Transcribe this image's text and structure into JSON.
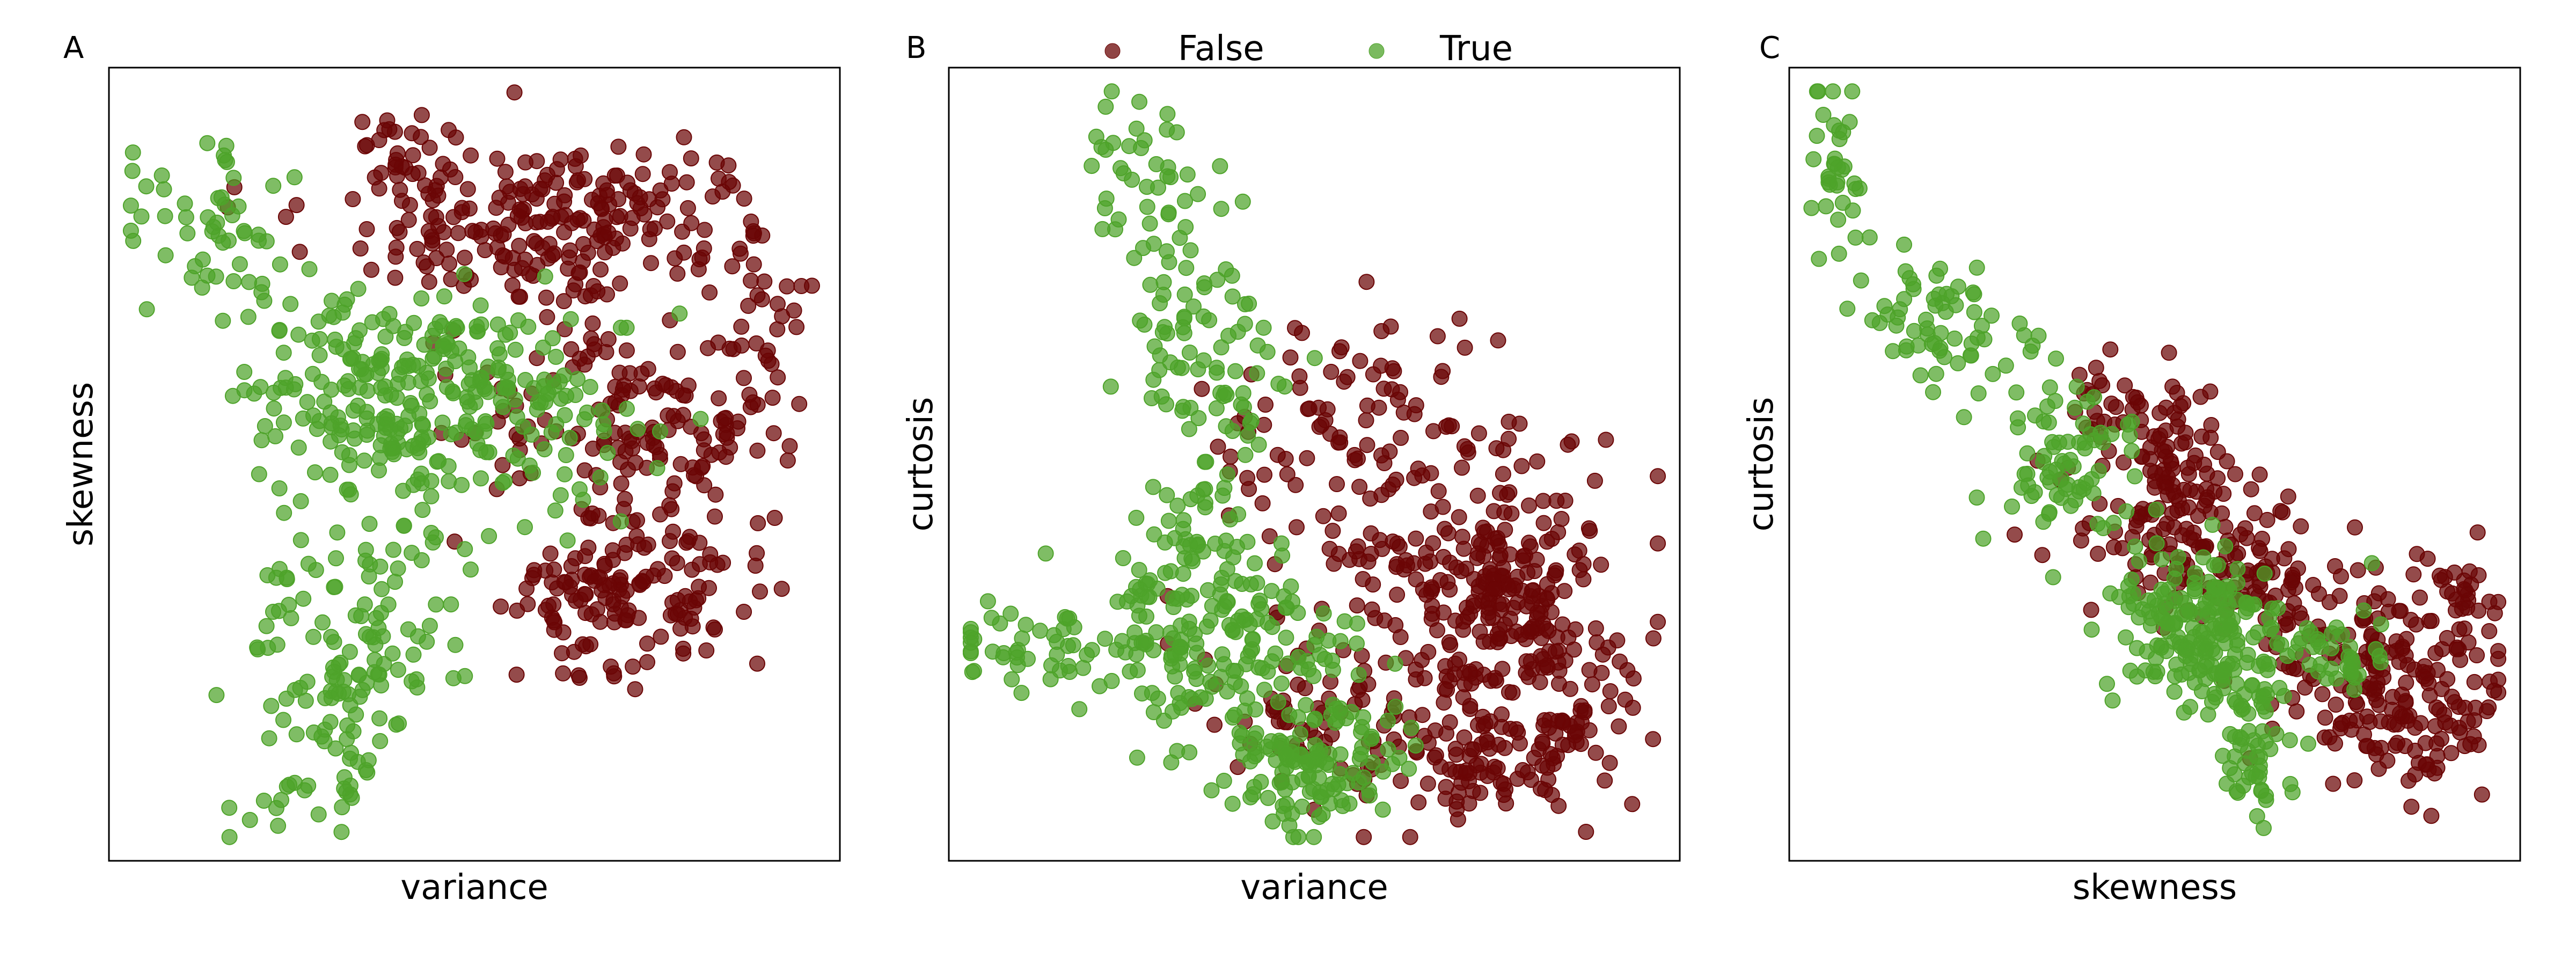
{
  "colors": {
    "False": "#6b0505",
    "True": "#4ea32a"
  },
  "legend": {
    "placement": "top-center",
    "entries": [
      "False",
      "True"
    ]
  },
  "chart_data": [
    {
      "type": "scatter",
      "panel": "A",
      "title": "",
      "xlabel": "variance",
      "ylabel": "skewness",
      "grid": false,
      "ticks": "none",
      "series": [
        {
          "name": "False",
          "clusters": [
            {
              "cx": 0.42,
              "cy": 0.87,
              "sx": 0.04,
              "sy": 0.03,
              "n": 35,
              "rot": -0.3
            },
            {
              "cx": 0.6,
              "cy": 0.81,
              "sx": 0.14,
              "sy": 0.05,
              "n": 210,
              "rot": 0.05
            },
            {
              "cx": 0.73,
              "cy": 0.56,
              "sx": 0.12,
              "sy": 0.08,
              "n": 160,
              "rot": 0.0
            },
            {
              "cx": 0.74,
              "cy": 0.34,
              "sx": 0.08,
              "sy": 0.05,
              "n": 110,
              "rot": 0.3
            },
            {
              "cx": 0.62,
              "cy": 0.33,
              "sx": 0.05,
              "sy": 0.04,
              "n": 40,
              "rot": 0.0
            },
            {
              "cx": 0.88,
              "cy": 0.71,
              "sx": 0.04,
              "sy": 0.06,
              "n": 30,
              "rot": 0.0
            }
          ]
        },
        {
          "name": "True",
          "clusters": [
            {
              "cx": 0.12,
              "cy": 0.82,
              "sx": 0.06,
              "sy": 0.05,
              "n": 45,
              "rot": -0.4
            },
            {
              "cx": 0.46,
              "cy": 0.6,
              "sx": 0.14,
              "sy": 0.06,
              "n": 250,
              "rot": -0.25
            },
            {
              "cx": 0.34,
              "cy": 0.53,
              "sx": 0.07,
              "sy": 0.05,
              "n": 70,
              "rot": 0.0
            },
            {
              "cx": 0.36,
              "cy": 0.31,
              "sx": 0.09,
              "sy": 0.07,
              "n": 95,
              "rot": 0.5
            },
            {
              "cx": 0.33,
              "cy": 0.21,
              "sx": 0.05,
              "sy": 0.04,
              "n": 35,
              "rot": 0.0
            },
            {
              "cx": 0.26,
              "cy": 0.08,
              "sx": 0.05,
              "sy": 0.02,
              "n": 25,
              "rot": 0.3
            }
          ]
        }
      ]
    },
    {
      "type": "scatter",
      "panel": "B",
      "title": "",
      "xlabel": "variance",
      "ylabel": "curtosis",
      "grid": false,
      "ticks": "none",
      "series": [
        {
          "name": "False",
          "clusters": [
            {
              "cx": 0.55,
              "cy": 0.56,
              "sx": 0.09,
              "sy": 0.06,
              "n": 60,
              "rot": 0.0
            },
            {
              "cx": 0.68,
              "cy": 0.38,
              "sx": 0.12,
              "sy": 0.1,
              "n": 200,
              "rot": -0.2
            },
            {
              "cx": 0.77,
              "cy": 0.32,
              "sx": 0.07,
              "sy": 0.06,
              "n": 120,
              "rot": 0.0
            },
            {
              "cx": 0.74,
              "cy": 0.13,
              "sx": 0.09,
              "sy": 0.04,
              "n": 110,
              "rot": 0.1
            },
            {
              "cx": 0.52,
              "cy": 0.18,
              "sx": 0.08,
              "sy": 0.05,
              "n": 60,
              "rot": 0.0
            },
            {
              "cx": 0.86,
              "cy": 0.2,
              "sx": 0.05,
              "sy": 0.05,
              "n": 30,
              "rot": 0.0
            }
          ]
        },
        {
          "name": "True",
          "clusters": [
            {
              "cx": 0.26,
              "cy": 0.88,
              "sx": 0.04,
              "sy": 0.06,
              "n": 35,
              "rot": 0.0
            },
            {
              "cx": 0.35,
              "cy": 0.63,
              "sx": 0.05,
              "sy": 0.1,
              "n": 90,
              "rot": 0.2
            },
            {
              "cx": 0.15,
              "cy": 0.26,
              "sx": 0.08,
              "sy": 0.03,
              "n": 60,
              "rot": -0.15
            },
            {
              "cx": 0.38,
              "cy": 0.27,
              "sx": 0.09,
              "sy": 0.06,
              "n": 160,
              "rot": -0.1
            },
            {
              "cx": 0.5,
              "cy": 0.12,
              "sx": 0.06,
              "sy": 0.04,
              "n": 120,
              "rot": 0.0
            },
            {
              "cx": 0.33,
              "cy": 0.4,
              "sx": 0.04,
              "sy": 0.04,
              "n": 40,
              "rot": 0.0
            }
          ]
        }
      ]
    },
    {
      "type": "scatter",
      "panel": "C",
      "title": "",
      "xlabel": "skewness",
      "ylabel": "curtosis",
      "grid": false,
      "ticks": "none",
      "series": [
        {
          "name": "False",
          "clusters": [
            {
              "cx": 0.6,
              "cy": 0.38,
              "sx": 0.11,
              "sy": 0.05,
              "n": 170,
              "rot": -0.35
            },
            {
              "cx": 0.82,
              "cy": 0.2,
              "sx": 0.07,
              "sy": 0.06,
              "n": 170,
              "rot": -0.3
            },
            {
              "cx": 0.53,
              "cy": 0.5,
              "sx": 0.03,
              "sy": 0.06,
              "n": 60,
              "rot": 0.0
            },
            {
              "cx": 0.91,
              "cy": 0.32,
              "sx": 0.04,
              "sy": 0.05,
              "n": 40,
              "rot": 0.5
            },
            {
              "cx": 0.44,
              "cy": 0.57,
              "sx": 0.04,
              "sy": 0.03,
              "n": 30,
              "rot": 0.0
            }
          ]
        },
        {
          "name": "True",
          "clusters": [
            {
              "cx": 0.06,
              "cy": 0.87,
              "sx": 0.02,
              "sy": 0.06,
              "n": 35,
              "rot": 0.0
            },
            {
              "cx": 0.23,
              "cy": 0.67,
              "sx": 0.06,
              "sy": 0.04,
              "n": 70,
              "rot": -0.5
            },
            {
              "cx": 0.38,
              "cy": 0.5,
              "sx": 0.04,
              "sy": 0.05,
              "n": 70,
              "rot": -0.6
            },
            {
              "cx": 0.56,
              "cy": 0.29,
              "sx": 0.06,
              "sy": 0.05,
              "n": 190,
              "rot": -0.6
            },
            {
              "cx": 0.64,
              "cy": 0.15,
              "sx": 0.03,
              "sy": 0.05,
              "n": 60,
              "rot": 0.0
            },
            {
              "cx": 0.74,
              "cy": 0.26,
              "sx": 0.04,
              "sy": 0.03,
              "n": 40,
              "rot": 0.0
            }
          ]
        }
      ]
    }
  ]
}
